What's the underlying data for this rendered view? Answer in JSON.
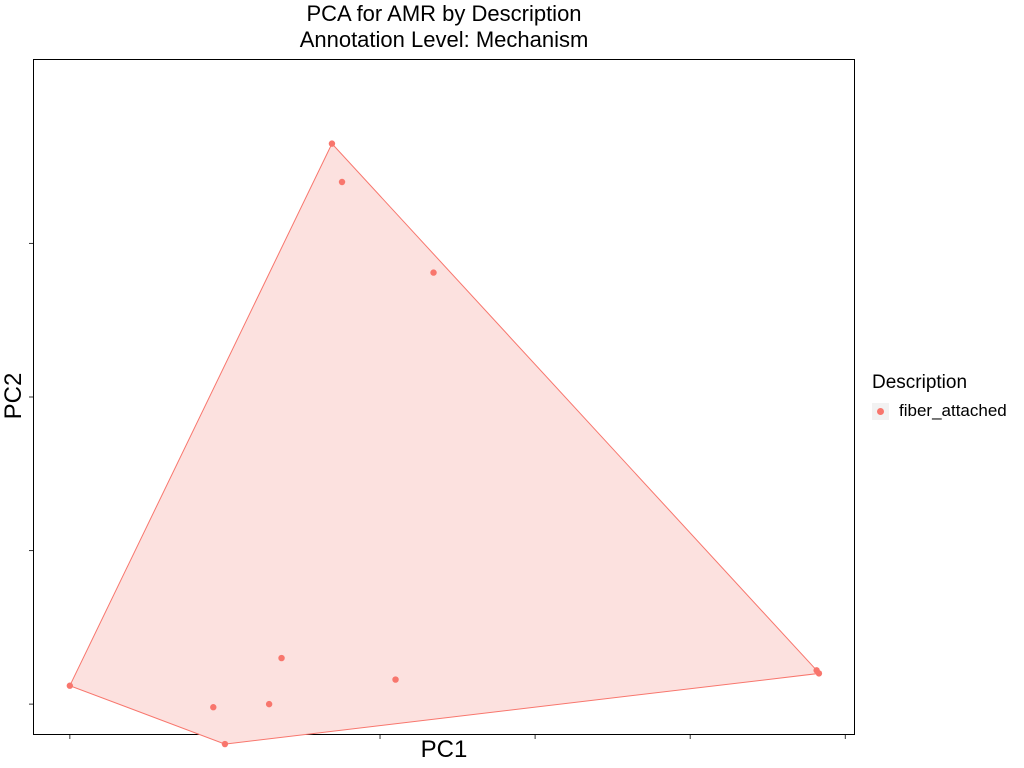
{
  "colors": {
    "accent": "#f8766d",
    "fill": "#fce1df",
    "axis": "#000000"
  },
  "chart_data": {
    "type": "scatter",
    "title": "PCA for AMR by Description",
    "subtitle": "Annotation Level: Mechanism",
    "xlabel": "PC1",
    "ylabel": "PC2",
    "x_tick_labels_shown": false,
    "y_tick_labels_shown": false,
    "grid": false,
    "legend": {
      "title": "Description",
      "position": "right",
      "entries": [
        "fiber_attached"
      ]
    },
    "hull": true,
    "xlim": [
      -0.0475,
      1.0125
    ],
    "ylim": [
      -0.201,
      4.201
    ],
    "series": [
      {
        "name": "fiber_attached",
        "points": [
          {
            "x": 0.0,
            "y": 0.12
          },
          {
            "x": 0.2,
            "y": -0.26
          },
          {
            "x": 0.185,
            "y": -0.02
          },
          {
            "x": 0.257,
            "y": 0.0
          },
          {
            "x": 0.273,
            "y": 0.3
          },
          {
            "x": 0.42,
            "y": 0.16
          },
          {
            "x": 0.338,
            "y": 3.65
          },
          {
            "x": 0.351,
            "y": 3.4
          },
          {
            "x": 0.469,
            "y": 2.81
          },
          {
            "x": 0.963,
            "y": 0.22
          },
          {
            "x": 0.966,
            "y": 0.2
          }
        ]
      }
    ]
  }
}
